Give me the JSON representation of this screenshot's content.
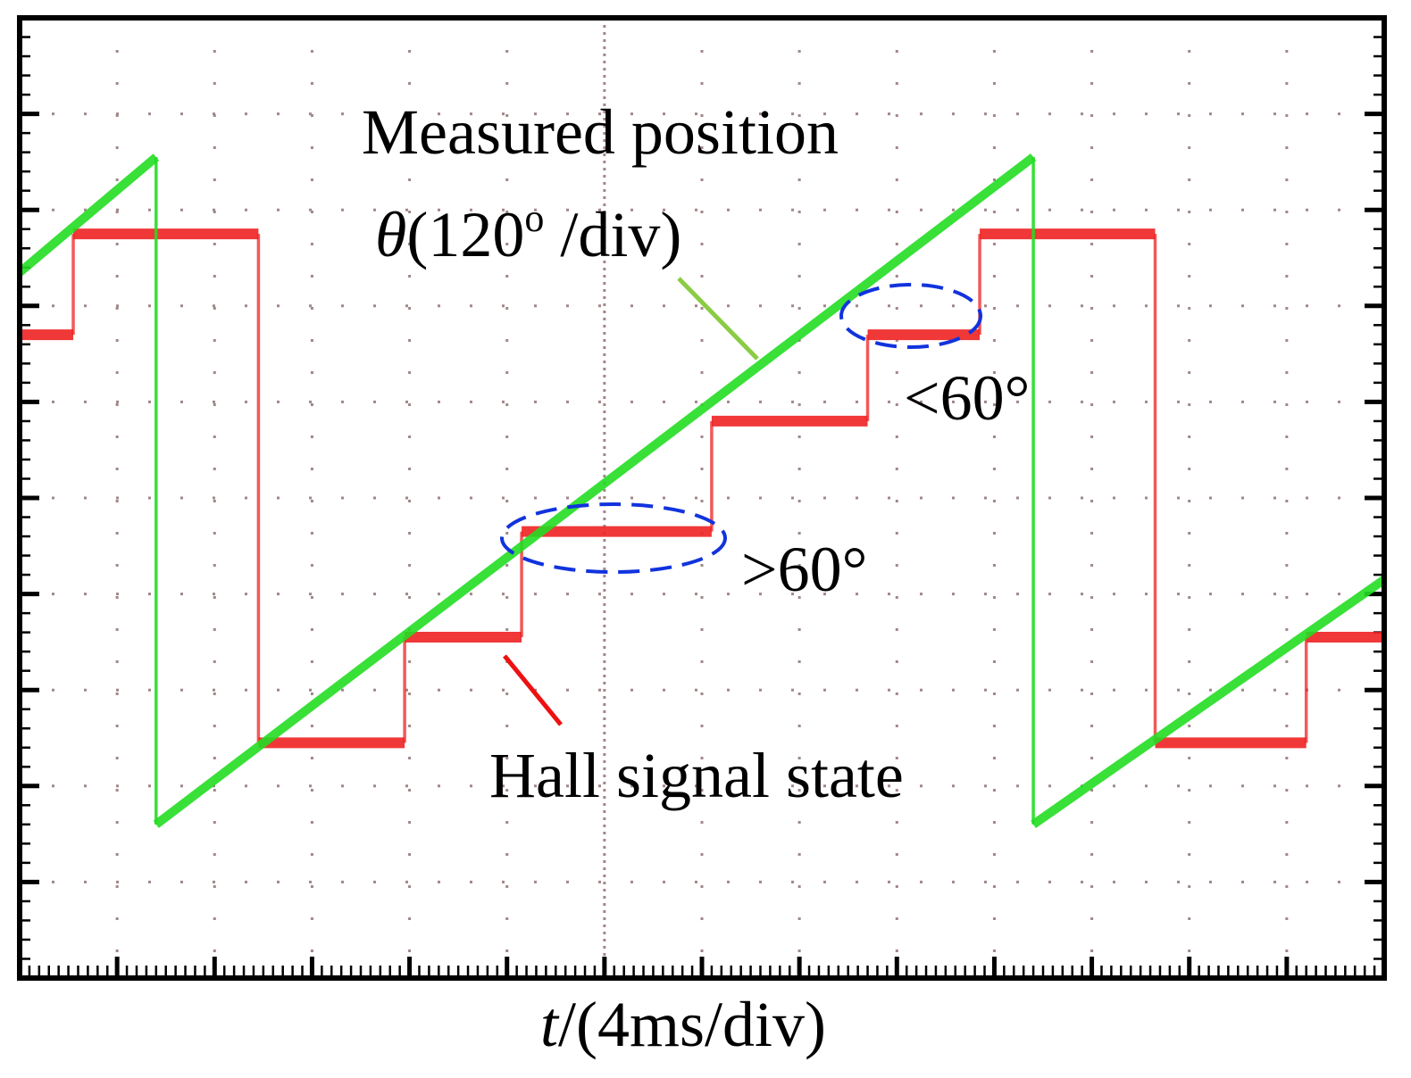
{
  "chart_data": {
    "type": "line",
    "title": "",
    "xlabel": {
      "var": "t",
      "unit": "/(4ms/div)"
    },
    "ylabel": "",
    "x_range_div": [
      0,
      14
    ],
    "y_range_div": [
      0,
      10
    ],
    "grid": "dotted",
    "series": [
      {
        "name": "Measured position θ(120° /div)",
        "color": "#22dd22",
        "x": [
          0,
          1.4,
          1.4,
          10.4,
          10.4,
          14
        ],
        "y": [
          7.35,
          8.55,
          1.6,
          8.55,
          1.6,
          4.15
        ]
      },
      {
        "name": "Hall signal state",
        "color": "#ee2222",
        "x": [
          0,
          0.55,
          0.55,
          2.45,
          2.45,
          3.95,
          3.95,
          5.15,
          5.15,
          7.1,
          7.1,
          8.7,
          8.7,
          9.85,
          9.85,
          11.65,
          11.65,
          13.2,
          13.2,
          14
        ],
        "y": [
          6.7,
          6.7,
          7.75,
          7.75,
          2.45,
          2.45,
          3.55,
          3.55,
          4.65,
          4.65,
          5.8,
          5.8,
          6.7,
          6.7,
          7.75,
          7.75,
          2.45,
          2.45,
          3.55,
          3.55
        ]
      }
    ],
    "annotations": {
      "position_label_line1": "Measured position",
      "position_label_symbol": "θ",
      "position_label_line2": "(120",
      "position_label_degree": "o",
      "position_label_line2b": " /div)",
      "hall_label": "Hall signal state",
      "less_than": "<60°",
      "greater_than": ">60°"
    }
  }
}
